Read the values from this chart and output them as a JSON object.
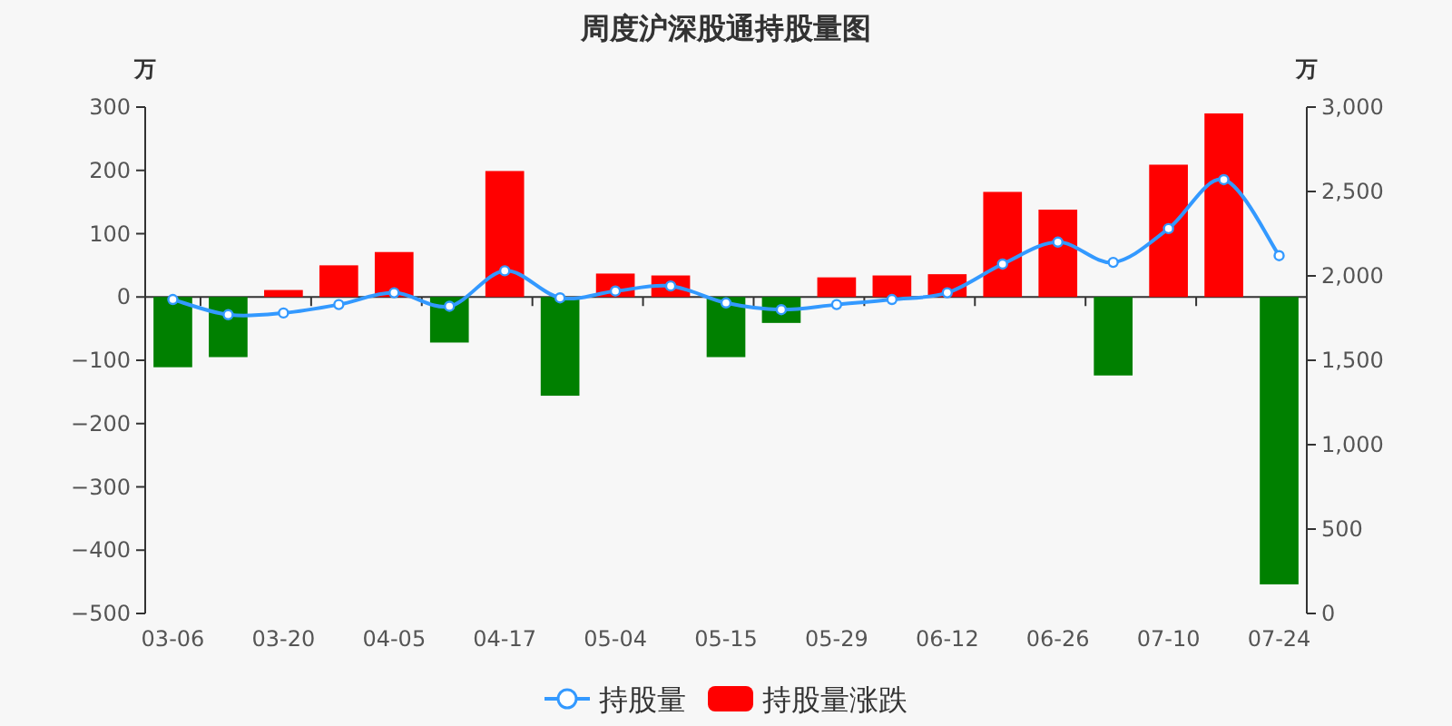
{
  "chart_data": {
    "type": "bar",
    "title": "周度沪深股通持股量图",
    "ylabel": "万",
    "y2label": "万",
    "categories": [
      "03-06",
      null,
      "03-20",
      null,
      "04-05",
      null,
      "04-17",
      null,
      "05-04",
      null,
      "05-15",
      null,
      "05-29",
      null,
      "06-12",
      null,
      "06-26",
      null,
      "07-10",
      null,
      "07-24"
    ],
    "series": [
      {
        "name": "持股量",
        "type": "line",
        "axis": "y2",
        "color": "#3399ff",
        "values": [
          1860,
          1770,
          1780,
          1830,
          1900,
          1820,
          2030,
          1870,
          1910,
          1940,
          1840,
          1800,
          1830,
          1860,
          1900,
          2070,
          2200,
          2080,
          2280,
          2570,
          2120
        ]
      },
      {
        "name": "持股量涨跌",
        "color": "#ff0000",
        "colors": [
          "#008000",
          "#008000",
          "#ff0000",
          "#ff0000",
          "#ff0000",
          "#008000",
          "#ff0000",
          "#008000",
          "#ff0000",
          "#ff0000",
          "#008000",
          "#008000",
          "#ff0000",
          "#ff0000",
          "#ff0000",
          "#ff0000",
          "#ff0000",
          "#008000",
          "#ff0000",
          "#ff0000",
          "#008000"
        ],
        "values": [
          -111,
          -95,
          11,
          50,
          71,
          -72,
          199,
          -156,
          37,
          34,
          -95,
          -41,
          31,
          34,
          36,
          166,
          138,
          -124,
          209,
          290,
          -454
        ]
      }
    ],
    "ylim": [
      -500,
      300
    ],
    "yticks": [
      -500,
      -400,
      -300,
      -200,
      -100,
      0,
      100,
      200,
      300
    ],
    "y2lim": [
      0,
      3000
    ],
    "y2ticks": [
      0,
      500,
      {
        "value": 1000,
        "label": "1,000"
      },
      {
        "value": 1500,
        "label": "1,500"
      },
      {
        "value": 2000,
        "label": "2,000"
      },
      {
        "value": 2500,
        "label": "2,500"
      },
      {
        "value": 3000,
        "label": "3,000"
      }
    ],
    "marker": "circle",
    "line_style": "solid",
    "legend": "bottom"
  }
}
